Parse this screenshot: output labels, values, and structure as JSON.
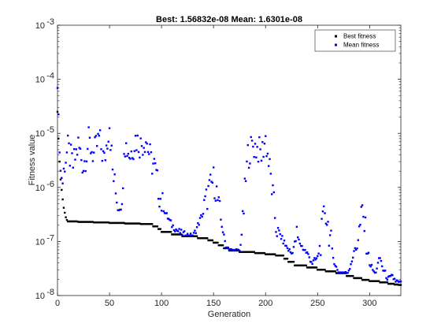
{
  "chart_data": {
    "type": "scatter",
    "title": "Best: 1.56832e-08 Mean: 1.6301e-08",
    "xlabel": "Generation",
    "ylabel": "Fitness value",
    "yscale": "log",
    "xlim": [
      0,
      330
    ],
    "ylim": [
      1e-08,
      0.001
    ],
    "xticks": [
      0,
      50,
      100,
      150,
      200,
      250,
      300
    ],
    "xtick_labels": [
      "0",
      "50",
      "100",
      "150",
      "200",
      "250",
      "300"
    ],
    "yticks": [
      1e-08,
      1e-07,
      1e-06,
      1e-05,
      0.0001,
      0.001
    ],
    "ytick_labels": [
      {
        "base": "10",
        "exp": "-8"
      },
      {
        "base": "10",
        "exp": "-7"
      },
      {
        "base": "10",
        "exp": "-6"
      },
      {
        "base": "10",
        "exp": "-5"
      },
      {
        "base": "10",
        "exp": "-4"
      },
      {
        "base": "10",
        "exp": "-3"
      }
    ],
    "grid": false,
    "legend": {
      "position": "top-right",
      "entries": [
        "Best fitness",
        "Mean fitness"
      ]
    },
    "colors": {
      "best": "#000000",
      "mean": "#0000ff"
    },
    "best_steps": [
      [
        0,
        2.5e-05
      ],
      [
        1,
        8e-06
      ],
      [
        2,
        3e-06
      ],
      [
        3,
        1.4e-06
      ],
      [
        4,
        9e-07
      ],
      [
        5,
        6e-07
      ],
      [
        6,
        4.2e-07
      ],
      [
        7,
        3.4e-07
      ],
      [
        8,
        2.8e-07
      ],
      [
        9,
        2.5e-07
      ],
      [
        10,
        2.35e-07
      ],
      [
        20,
        2.3e-07
      ],
      [
        35,
        2.25e-07
      ],
      [
        50,
        2.2e-07
      ],
      [
        65,
        2.15e-07
      ],
      [
        80,
        2.1e-07
      ],
      [
        92,
        1.9e-07
      ],
      [
        97,
        1.7e-07
      ],
      [
        100,
        1.5e-07
      ],
      [
        110,
        1.35e-07
      ],
      [
        120,
        1.25e-07
      ],
      [
        135,
        1.15e-07
      ],
      [
        145,
        1.05e-07
      ],
      [
        150,
        9.5e-08
      ],
      [
        155,
        8.5e-08
      ],
      [
        160,
        7.5e-08
      ],
      [
        165,
        6.8e-08
      ],
      [
        175,
        6.4e-08
      ],
      [
        190,
        6.1e-08
      ],
      [
        200,
        5.8e-08
      ],
      [
        210,
        5.5e-08
      ],
      [
        218,
        4.8e-08
      ],
      [
        222,
        4.2e-08
      ],
      [
        228,
        3.6e-08
      ],
      [
        240,
        3.3e-08
      ],
      [
        250,
        3e-08
      ],
      [
        258,
        2.8e-08
      ],
      [
        268,
        2.6e-08
      ],
      [
        278,
        2.3e-08
      ],
      [
        285,
        2.1e-08
      ],
      [
        293,
        1.95e-08
      ],
      [
        300,
        1.85e-08
      ],
      [
        310,
        1.75e-08
      ],
      [
        318,
        1.65e-08
      ],
      [
        324,
        1.6e-08
      ],
      [
        328,
        1.57e-08
      ]
    ],
    "mean_anchors": [
      [
        0,
        0.00013
      ],
      [
        1,
        2e-05
      ],
      [
        2,
        5e-06
      ],
      [
        3,
        2e-06
      ],
      [
        5,
        1.2e-06
      ],
      [
        7,
        3e-06
      ],
      [
        10,
        5e-06
      ],
      [
        15,
        2.5e-06
      ],
      [
        20,
        6e-06
      ],
      [
        25,
        2.5e-06
      ],
      [
        30,
        7e-06
      ],
      [
        35,
        4e-06
      ],
      [
        40,
        8e-06
      ],
      [
        45,
        3e-06
      ],
      [
        50,
        1.6e-05
      ],
      [
        53,
        2e-06
      ],
      [
        56,
        8e-07
      ],
      [
        58,
        4e-07
      ],
      [
        62,
        4.5e-07
      ],
      [
        64,
        7e-06
      ],
      [
        70,
        4e-06
      ],
      [
        75,
        8e-06
      ],
      [
        80,
        6e-06
      ],
      [
        85,
        8e-06
      ],
      [
        90,
        3e-06
      ],
      [
        93,
        2.5e-06
      ],
      [
        96,
        1.2e-06
      ],
      [
        100,
        5e-07
      ],
      [
        105,
        3e-07
      ],
      [
        110,
        2e-07
      ],
      [
        115,
        1.6e-07
      ],
      [
        120,
        1.4e-07
      ],
      [
        125,
        1.3e-07
      ],
      [
        130,
        1.2e-07
      ],
      [
        135,
        2e-07
      ],
      [
        140,
        3.5e-07
      ],
      [
        145,
        8e-07
      ],
      [
        150,
        1.4e-06
      ],
      [
        153,
        8e-07
      ],
      [
        155,
        4e-07
      ],
      [
        158,
        2e-07
      ],
      [
        160,
        1.2e-07
      ],
      [
        163,
        7e-08
      ],
      [
        170,
        6.5e-08
      ],
      [
        175,
        6.5e-08
      ],
      [
        178,
        2e-07
      ],
      [
        180,
        8e-07
      ],
      [
        183,
        4e-06
      ],
      [
        188,
        6e-06
      ],
      [
        193,
        5e-06
      ],
      [
        196,
        4e-06
      ],
      [
        200,
        8e-06
      ],
      [
        205,
        1.5e-06
      ],
      [
        210,
        2e-07
      ],
      [
        215,
        1.2e-07
      ],
      [
        220,
        8e-08
      ],
      [
        225,
        6e-08
      ],
      [
        230,
        1.2e-07
      ],
      [
        235,
        8e-08
      ],
      [
        240,
        6e-08
      ],
      [
        245,
        4e-08
      ],
      [
        250,
        5e-08
      ],
      [
        253,
        1e-07
      ],
      [
        257,
        4e-07
      ],
      [
        260,
        2e-07
      ],
      [
        265,
        5e-08
      ],
      [
        270,
        2.5e-08
      ],
      [
        275,
        2.2e-08
      ],
      [
        280,
        3e-08
      ],
      [
        285,
        6e-08
      ],
      [
        290,
        1.5e-07
      ],
      [
        293,
        3.5e-07
      ],
      [
        296,
        1.5e-07
      ],
      [
        300,
        4e-08
      ],
      [
        305,
        2.5e-08
      ],
      [
        310,
        5e-08
      ],
      [
        313,
        3e-08
      ],
      [
        318,
        2e-08
      ],
      [
        322,
        2.2e-08
      ],
      [
        326,
        1.8e-08
      ],
      [
        330,
        1.63e-08
      ]
    ],
    "generations": 330
  }
}
